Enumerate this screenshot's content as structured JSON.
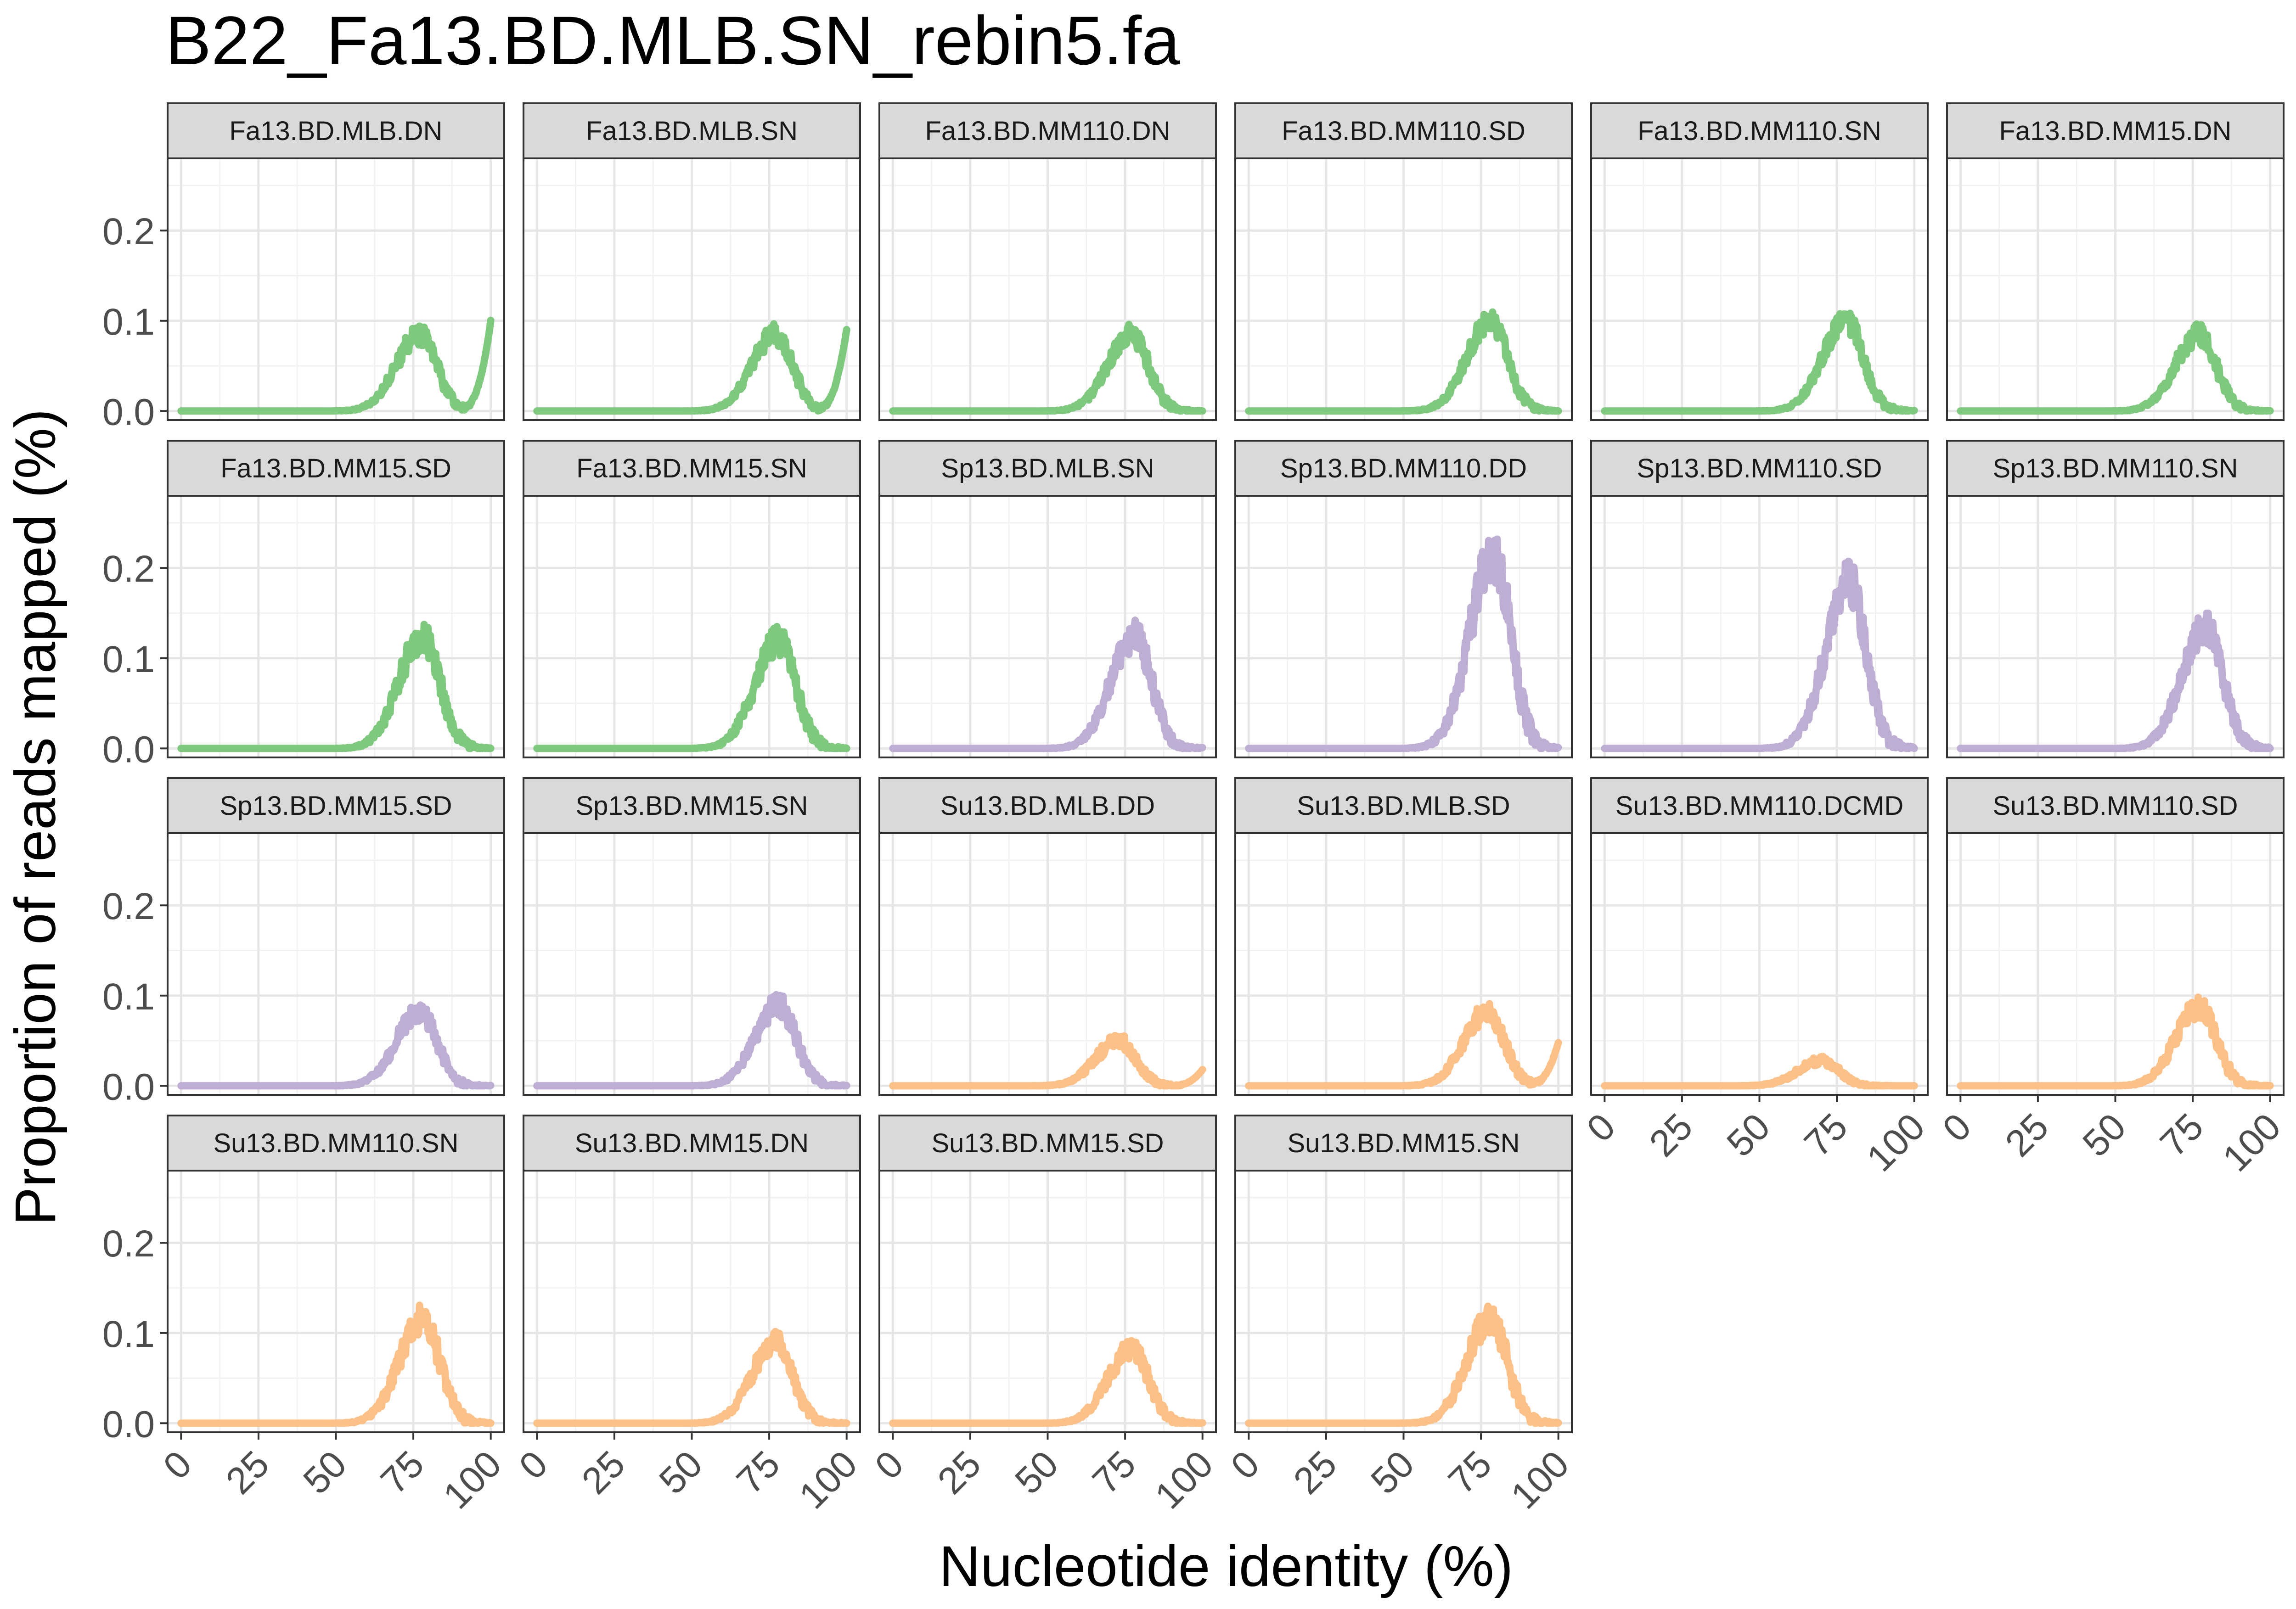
{
  "chart_data": {
    "type": "line",
    "title": "B22_Fa13.BD.MLB.SN_rebin5.fa",
    "xlabel": "Nucleotide identity (%)",
    "ylabel": "Proportion of reads mapped (%)",
    "xlim": [
      0,
      100
    ],
    "ylim": [
      -0.01,
      0.28
    ],
    "x_ticks": [
      0,
      25,
      50,
      75,
      100
    ],
    "x_tick_labels": [
      "0",
      "25",
      "50",
      "75",
      "100"
    ],
    "y_ticks": [
      0.0,
      0.1,
      0.2
    ],
    "y_tick_labels": [
      "0.0",
      "0.1",
      "0.2"
    ],
    "grid": true,
    "theme": "facet grid, bordered panels, grey strip headers",
    "group_colors": {
      "Fa13": "#7fc97f",
      "Sp13": "#beaed4",
      "Su13": "#fdc086"
    },
    "panels": [
      {
        "label": "Fa13.BD.MLB.DN",
        "group": "Fa13",
        "peak_x": 77,
        "peak_y": 0.085,
        "noise": 0.012,
        "rise_100": 0.1
      },
      {
        "label": "Fa13.BD.MLB.SN",
        "group": "Fa13",
        "peak_x": 77,
        "peak_y": 0.085,
        "noise": 0.012,
        "rise_100": 0.09
      },
      {
        "label": "Fa13.BD.MM110.DN",
        "group": "Fa13",
        "peak_x": 77,
        "peak_y": 0.085,
        "noise": 0.012,
        "rise_100": 0
      },
      {
        "label": "Fa13.BD.MM110.SD",
        "group": "Fa13",
        "peak_x": 78,
        "peak_y": 0.1,
        "noise": 0.013,
        "rise_100": 0
      },
      {
        "label": "Fa13.BD.MM110.SN",
        "group": "Fa13",
        "peak_x": 78,
        "peak_y": 0.1,
        "noise": 0.013,
        "rise_100": 0
      },
      {
        "label": "Fa13.BD.MM15.DN",
        "group": "Fa13",
        "peak_x": 77,
        "peak_y": 0.085,
        "noise": 0.012,
        "rise_100": 0
      },
      {
        "label": "Fa13.BD.MM15.SD",
        "group": "Fa13",
        "peak_x": 78,
        "peak_y": 0.125,
        "noise": 0.018,
        "rise_100": 0
      },
      {
        "label": "Fa13.BD.MM15.SN",
        "group": "Fa13",
        "peak_x": 78,
        "peak_y": 0.12,
        "noise": 0.017,
        "rise_100": 0
      },
      {
        "label": "Sp13.BD.MLB.SN",
        "group": "Sp13",
        "peak_x": 78,
        "peak_y": 0.125,
        "noise": 0.018,
        "rise_100": 0
      },
      {
        "label": "Sp13.BD.MM110.DD",
        "group": "Sp13",
        "peak_x": 79,
        "peak_y": 0.215,
        "noise": 0.03,
        "rise_100": 0
      },
      {
        "label": "Sp13.BD.MM110.SD",
        "group": "Sp13",
        "peak_x": 79,
        "peak_y": 0.185,
        "noise": 0.026,
        "rise_100": 0
      },
      {
        "label": "Sp13.BD.MM110.SN",
        "group": "Sp13",
        "peak_x": 79,
        "peak_y": 0.135,
        "noise": 0.02,
        "rise_100": 0
      },
      {
        "label": "Sp13.BD.MM15.SD",
        "group": "Sp13",
        "peak_x": 77,
        "peak_y": 0.082,
        "noise": 0.012,
        "rise_100": 0
      },
      {
        "label": "Sp13.BD.MM15.SN",
        "group": "Sp13",
        "peak_x": 78,
        "peak_y": 0.09,
        "noise": 0.013,
        "rise_100": 0
      },
      {
        "label": "Su13.BD.MLB.DD",
        "group": "Su13",
        "peak_x": 73,
        "peak_y": 0.05,
        "noise": 0.008,
        "rise_100": 0.018
      },
      {
        "label": "Su13.BD.MLB.SD",
        "group": "Su13",
        "peak_x": 77,
        "peak_y": 0.082,
        "noise": 0.012,
        "rise_100": 0.048
      },
      {
        "label": "Su13.BD.MM110.DCMD",
        "group": "Su13",
        "peak_x": 70,
        "peak_y": 0.028,
        "noise": 0.005,
        "rise_100": 0
      },
      {
        "label": "Su13.BD.MM110.SD",
        "group": "Su13",
        "peak_x": 77,
        "peak_y": 0.087,
        "noise": 0.013,
        "rise_100": 0
      },
      {
        "label": "Su13.BD.MM110.SN",
        "group": "Su13",
        "peak_x": 78,
        "peak_y": 0.115,
        "noise": 0.017,
        "rise_100": 0
      },
      {
        "label": "Su13.BD.MM15.DN",
        "group": "Su13",
        "peak_x": 77,
        "peak_y": 0.09,
        "noise": 0.013,
        "rise_100": 0
      },
      {
        "label": "Su13.BD.MM15.SD",
        "group": "Su13",
        "peak_x": 77,
        "peak_y": 0.082,
        "noise": 0.012,
        "rise_100": 0
      },
      {
        "label": "Su13.BD.MM15.SN",
        "group": "Su13",
        "peak_x": 78,
        "peak_y": 0.115,
        "noise": 0.017,
        "rise_100": 0
      }
    ]
  }
}
